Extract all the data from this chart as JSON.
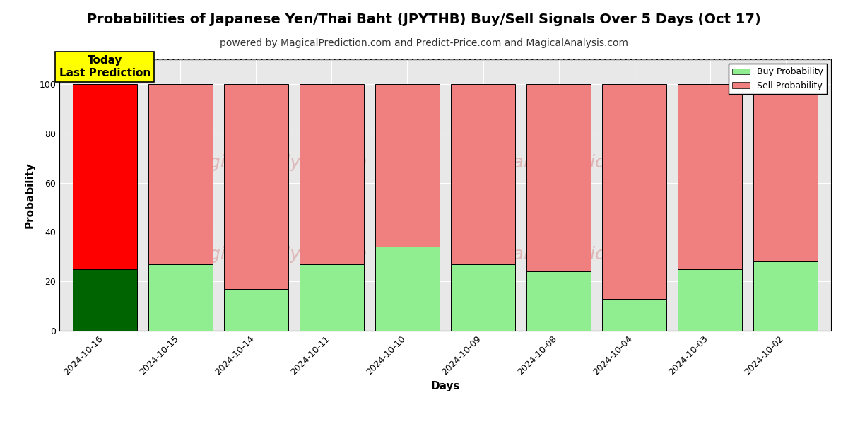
{
  "title": "Probabilities of Japanese Yen/Thai Baht (JPYTHB) Buy/Sell Signals Over 5 Days (Oct 17)",
  "subtitle": "powered by MagicalPrediction.com and Predict-Price.com and MagicalAnalysis.com",
  "xlabel": "Days",
  "ylabel": "Probability",
  "categories": [
    "2024-10-16",
    "2024-10-15",
    "2024-10-14",
    "2024-10-11",
    "2024-10-10",
    "2024-10-09",
    "2024-10-08",
    "2024-10-04",
    "2024-10-03",
    "2024-10-02"
  ],
  "buy_values": [
    25,
    27,
    17,
    27,
    34,
    27,
    24,
    13,
    25,
    28
  ],
  "sell_values": [
    75,
    73,
    83,
    73,
    66,
    73,
    76,
    87,
    75,
    72
  ],
  "today_buy_color": "#006400",
  "today_sell_color": "#ff0000",
  "buy_color": "#90EE90",
  "sell_color": "#F08080",
  "today_index": 0,
  "today_label": "Today\nLast Prediction",
  "legend_buy": "Buy Probability",
  "legend_sell": "Sell Probability",
  "ylim": [
    0,
    110
  ],
  "yticks": [
    0,
    20,
    40,
    60,
    80,
    100
  ],
  "dashed_line_y": 110,
  "title_fontsize": 14,
  "subtitle_fontsize": 10,
  "bar_edgecolor": "#000000",
  "background_color": "#ffffff",
  "plot_bg_color": "#e8e8e8"
}
